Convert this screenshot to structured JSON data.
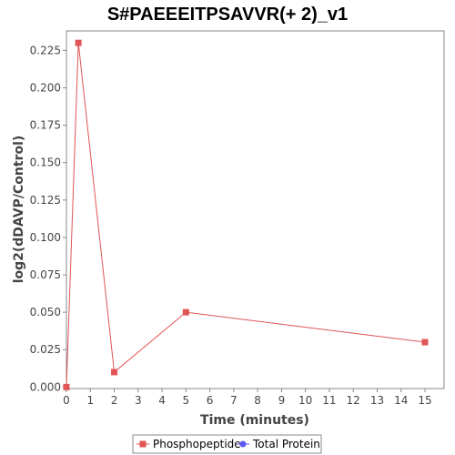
{
  "chart_data": {
    "type": "line",
    "title": "S#PAEEEITPSAVVR(+ 2)_v1",
    "xlabel": "Time (minutes)",
    "ylabel": "log2(dDAVP/Control)",
    "xlim": [
      0,
      15.8
    ],
    "ylim": [
      -0.001,
      0.238
    ],
    "x_ticks": [
      0,
      1,
      2,
      3,
      4,
      5,
      6,
      7,
      8,
      9,
      10,
      11,
      12,
      13,
      14,
      15
    ],
    "y_ticks": [
      0,
      0.025,
      0.05,
      0.075,
      0.1,
      0.125,
      0.15,
      0.175,
      0.2,
      0.225
    ],
    "y_tick_labels": [
      "0.000",
      "0.025",
      "0.050",
      "0.075",
      "0.100",
      "0.125",
      "0.150",
      "0.175",
      "0.200",
      "0.225"
    ],
    "grid": false,
    "legend_position": "bottom",
    "series": [
      {
        "name": "Phosphopeptide",
        "color": "#e05555",
        "marker": "square",
        "x": [
          0,
          0.5,
          2,
          5,
          15
        ],
        "y": [
          0,
          0.23,
          0.01,
          0.05,
          0.03
        ]
      },
      {
        "name": "Total Protein",
        "color": "#5a5af0",
        "marker": "circle",
        "x": [],
        "y": []
      }
    ]
  }
}
